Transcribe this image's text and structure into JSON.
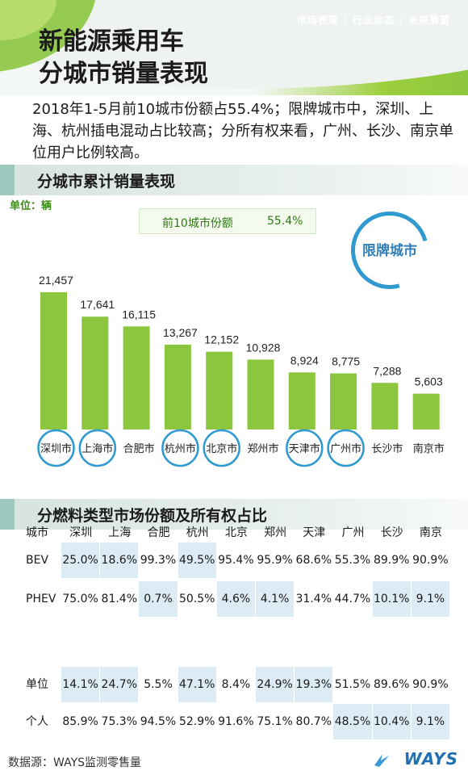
{
  "header": {
    "title_line1": "新能源乘用车",
    "title_line2": "分城市销量表现",
    "nav": [
      "市场表现",
      "行业动态",
      "未来展望"
    ]
  },
  "summary": "2018年1-5月前10城市份额占55.4%；限牌城市中，深圳、上海、杭州插电混动占比较高；分所有权来看，广州、长沙、南京单位用户比例较高。",
  "section1": {
    "title": "分城市累计销量表现"
  },
  "unit_label": "单位：辆",
  "share_box": {
    "label": "前10城市份额",
    "value": "55.4%"
  },
  "limited_label": "限牌城市",
  "colors": {
    "bar": "#8cc63f",
    "ring": "#2f9ad0",
    "highlight": "#dcebf4",
    "label_green": "#3c8a17"
  },
  "chart_data": {
    "type": "bar",
    "categories": [
      "深圳市",
      "上海市",
      "合肥市",
      "杭州市",
      "北京市",
      "郑州市",
      "天津市",
      "广州市",
      "长沙市",
      "南京市"
    ],
    "values": [
      21457,
      17641,
      16115,
      13267,
      12152,
      10928,
      8924,
      8775,
      7288,
      5603
    ],
    "value_labels": [
      "21,457",
      "17,641",
      "16,115",
      "13,267",
      "12,152",
      "10,928",
      "8,924",
      "8,775",
      "7,288",
      "5,603"
    ],
    "limited_cities": [
      "深圳市",
      "上海市",
      "杭州市",
      "北京市",
      "天津市",
      "广州市"
    ],
    "unit": "辆",
    "title": "分城市累计销量表现"
  },
  "section2": {
    "title": "分燃料类型市场份额及所有权占比"
  },
  "table": {
    "header_label": "城市",
    "cities": [
      "深圳",
      "上海",
      "合肥",
      "杭州",
      "北京",
      "郑州",
      "天津",
      "广州",
      "长沙",
      "南京"
    ],
    "rows": [
      {
        "label": "BEV",
        "values": [
          "25.0%",
          "18.6%",
          "99.3%",
          "49.5%",
          "95.4%",
          "95.9%",
          "68.6%",
          "55.3%",
          "89.9%",
          "90.9%"
        ],
        "highlight": [
          true,
          true,
          false,
          true,
          false,
          false,
          false,
          false,
          false,
          false
        ]
      },
      {
        "label": "PHEV",
        "values": [
          "75.0%",
          "81.4%",
          "0.7%",
          "50.5%",
          "4.6%",
          "4.1%",
          "31.4%",
          "44.7%",
          "10.1%",
          "9.1%"
        ],
        "highlight": [
          false,
          false,
          true,
          false,
          true,
          true,
          false,
          false,
          true,
          true
        ]
      },
      {
        "label": "单位",
        "values": [
          "14.1%",
          "24.7%",
          "5.5%",
          "47.1%",
          "8.4%",
          "24.9%",
          "19.3%",
          "51.5%",
          "89.6%",
          "90.9%"
        ],
        "highlight": [
          true,
          true,
          false,
          true,
          false,
          true,
          true,
          false,
          false,
          false
        ]
      },
      {
        "label": "个人",
        "values": [
          "85.9%",
          "75.3%",
          "94.5%",
          "52.9%",
          "91.6%",
          "75.1%",
          "80.7%",
          "48.5%",
          "10.4%",
          "9.1%"
        ],
        "highlight": [
          false,
          false,
          false,
          false,
          false,
          false,
          false,
          true,
          true,
          true
        ]
      }
    ]
  },
  "source": "数据源：WAYS监测零售量",
  "logo": "WAYS"
}
